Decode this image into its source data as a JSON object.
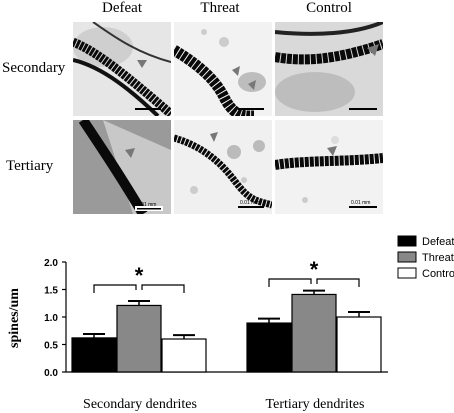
{
  "figure": {
    "columns": [
      "Defeat",
      "Threat",
      "Control"
    ],
    "rows": [
      "Secondary",
      "Tertiary"
    ],
    "scale_bar_label": "0.01 mm"
  },
  "chart_data": {
    "type": "bar",
    "categories": [
      "Secondary dendrites",
      "Tertiary dendrites"
    ],
    "series": [
      {
        "name": "Defeat",
        "values": [
          0.62,
          0.89
        ],
        "errors": [
          0.07,
          0.08
        ],
        "color": "#000000"
      },
      {
        "name": "Threat",
        "values": [
          1.21,
          1.41
        ],
        "errors": [
          0.08,
          0.07
        ],
        "color": "#888888"
      },
      {
        "name": "Control",
        "values": [
          0.6,
          1.0
        ],
        "errors": [
          0.07,
          0.09
        ],
        "color": "#ffffff"
      }
    ],
    "ylabel": "spines/um",
    "xlabel": "",
    "ylim": [
      0.0,
      2.0
    ],
    "yticks": [
      "0.0",
      "0.5",
      "1.0",
      "1.5",
      "2.0"
    ],
    "annotations": [
      "*",
      "*"
    ],
    "legend_position": "top-right"
  }
}
